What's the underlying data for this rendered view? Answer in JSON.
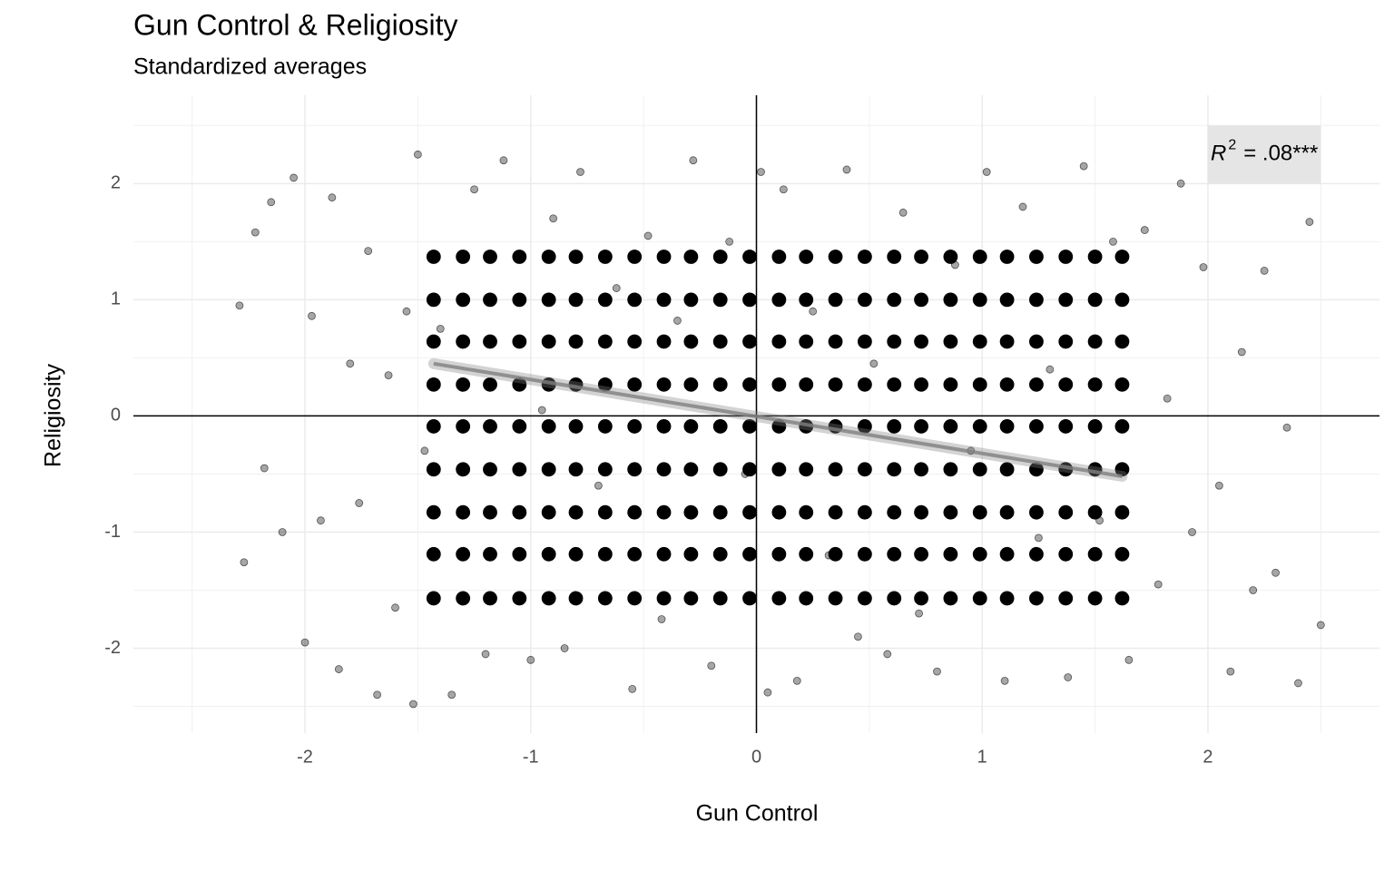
{
  "chart_data": {
    "type": "scatter",
    "title": "Gun Control & Religiosity",
    "subtitle": "Standardized averages",
    "x_label": "Gun Control",
    "y_label": "Religiosity",
    "xlim": [
      -2.76,
      2.76
    ],
    "ylim": [
      -2.73,
      2.76
    ],
    "xticks": [
      -2,
      -1,
      0,
      1,
      2
    ],
    "yticks": [
      -2,
      -1,
      0,
      1,
      2
    ],
    "xminor": [
      -2.5,
      -1.5,
      -0.5,
      0.5,
      1.5,
      2.5
    ],
    "yminor": [
      -2.5,
      -1.5,
      -0.5,
      0.5,
      1.5,
      2.5
    ],
    "grid": true,
    "hline": 0,
    "vline": 0,
    "series": [
      {
        "color": "#000000",
        "opacity": 0.35,
        "x": [
          -2.29,
          -2.27,
          -2.22,
          -2.18,
          -2.15,
          -2.1,
          -2.05,
          -2.0,
          -1.97,
          -1.93,
          -1.88,
          -1.85,
          -1.8,
          -1.76,
          -1.72,
          -1.68,
          -1.63,
          -1.6,
          -1.55,
          -1.52,
          -1.5,
          -1.47,
          -1.4,
          -1.35,
          -1.25,
          -1.2,
          -1.12,
          -1.0,
          -0.95,
          -0.9,
          -0.85,
          -0.78,
          -0.7,
          -0.62,
          -0.55,
          -0.48,
          -0.42,
          -0.35,
          -0.28,
          -0.2,
          -0.12,
          -0.05,
          0.02,
          0.05,
          0.12,
          0.18,
          0.25,
          0.32,
          0.4,
          0.45,
          0.52,
          0.58,
          0.65,
          0.72,
          0.8,
          0.88,
          0.95,
          1.02,
          1.1,
          1.18,
          1.25,
          1.3,
          1.38,
          1.45,
          1.52,
          1.58,
          1.65,
          1.72,
          1.78,
          1.82,
          1.88,
          1.93,
          1.98,
          2.05,
          2.1,
          2.15,
          2.2,
          2.25,
          2.3,
          2.35,
          2.4,
          2.45,
          2.5
        ],
        "y": [
          0.95,
          -1.26,
          1.58,
          -0.45,
          1.84,
          -1.0,
          2.05,
          -1.95,
          0.86,
          -0.9,
          1.88,
          -2.18,
          0.45,
          -0.75,
          1.42,
          -2.4,
          0.35,
          -1.65,
          0.9,
          -2.48,
          2.25,
          -0.3,
          0.75,
          -2.4,
          1.95,
          -2.05,
          2.2,
          -2.1,
          0.05,
          1.7,
          -2.0,
          2.1,
          -0.6,
          1.1,
          -2.35,
          1.55,
          -1.75,
          0.82,
          2.2,
          -2.15,
          1.5,
          -0.5,
          2.1,
          -2.38,
          1.95,
          -2.28,
          0.9,
          -1.2,
          2.12,
          -1.9,
          0.45,
          -2.05,
          1.75,
          -1.7,
          -2.2,
          1.3,
          -0.3,
          2.1,
          -2.28,
          1.8,
          -1.05,
          0.4,
          -2.25,
          2.15,
          -0.9,
          1.5,
          -2.1,
          1.6,
          -1.45,
          0.15,
          2.0,
          -1.0,
          1.28,
          -0.6,
          -2.2,
          0.55,
          -1.5,
          1.25,
          -1.35,
          -0.1,
          -2.3,
          1.67,
          -1.8
        ]
      },
      {
        "color": "#000000",
        "opacity": 1,
        "x": [
          -1.43,
          -1.3,
          -1.18,
          -1.05,
          -0.92,
          -0.8,
          -0.67,
          -0.54,
          -0.41,
          -0.29,
          -0.16,
          -0.03,
          0.1,
          0.22,
          0.35,
          0.48,
          0.61,
          0.73,
          0.86,
          0.99,
          1.11,
          1.24,
          1.37,
          1.5,
          1.62,
          -1.43,
          -1.3,
          -1.18,
          -1.05,
          -0.92,
          -0.8,
          -0.67,
          -0.54,
          -0.41,
          -0.29,
          -0.16,
          -0.03,
          0.1,
          0.22,
          0.35,
          0.48,
          0.61,
          0.73,
          0.86,
          0.99,
          1.11,
          1.24,
          1.37,
          1.5,
          1.62,
          -1.43,
          -1.3,
          -1.18,
          -1.05,
          -0.92,
          -0.8,
          -0.67,
          -0.54,
          -0.41,
          -0.29,
          -0.16,
          -0.03,
          0.1,
          0.22,
          0.35,
          0.48,
          0.61,
          0.73,
          0.86,
          0.99,
          1.11,
          1.24,
          1.37,
          1.5,
          1.62,
          -1.43,
          -1.3,
          -1.18,
          -1.05,
          -0.92,
          -0.8,
          -0.67,
          -0.54,
          -0.41,
          -0.29,
          -0.16,
          -0.03,
          0.1,
          0.22,
          0.35,
          0.48,
          0.61,
          0.73,
          0.86,
          0.99,
          1.11,
          1.24,
          1.37,
          1.5,
          1.62,
          -1.43,
          -1.3,
          -1.18,
          -1.05,
          -0.92,
          -0.8,
          -0.67,
          -0.54,
          -0.41,
          -0.29,
          -0.16,
          -0.03,
          0.1,
          0.22,
          0.35,
          0.48,
          0.61,
          0.73,
          0.86,
          0.99,
          1.11,
          1.24,
          1.37,
          1.5,
          1.62,
          -1.43,
          -1.3,
          -1.18,
          -1.05,
          -0.92,
          -0.8,
          -0.67,
          -0.54,
          -0.41,
          -0.29,
          -0.16,
          -0.03,
          0.1,
          0.22,
          0.35,
          0.48,
          0.61,
          0.73,
          0.86,
          0.99,
          1.11,
          1.24,
          1.37,
          1.5,
          1.62,
          -1.43,
          -1.3,
          -1.18,
          -1.05,
          -0.92,
          -0.8,
          -0.67,
          -0.54,
          -0.41,
          -0.29,
          -0.16,
          -0.03,
          0.1,
          0.22,
          0.35,
          0.48,
          0.61,
          0.73,
          0.86,
          0.99,
          1.11,
          1.24,
          1.37,
          1.5,
          1.62,
          -1.43,
          -1.3,
          -1.18,
          -1.05,
          -0.92,
          -0.8,
          -0.67,
          -0.54,
          -0.41,
          -0.29,
          -0.16,
          -0.03,
          0.1,
          0.22,
          0.35,
          0.48,
          0.61,
          0.73,
          0.86,
          0.99,
          1.11,
          1.24,
          1.37,
          1.5,
          1.62,
          -1.43,
          -1.3,
          -1.18,
          -1.05,
          -0.92,
          -0.8,
          -0.67,
          -0.54,
          -0.41,
          -0.29,
          -0.16,
          -0.03,
          0.1,
          0.22,
          0.35,
          0.48,
          0.61,
          0.73,
          0.86,
          0.99,
          1.11,
          1.24,
          1.37,
          1.5,
          1.62
        ],
        "y": [
          1.37,
          1.37,
          1.37,
          1.37,
          1.37,
          1.37,
          1.37,
          1.37,
          1.37,
          1.37,
          1.37,
          1.37,
          1.37,
          1.37,
          1.37,
          1.37,
          1.37,
          1.37,
          1.37,
          1.37,
          1.37,
          1.37,
          1.37,
          1.37,
          1.37,
          1.0,
          1.0,
          1.0,
          1.0,
          1.0,
          1.0,
          1.0,
          1.0,
          1.0,
          1.0,
          1.0,
          1.0,
          1.0,
          1.0,
          1.0,
          1.0,
          1.0,
          1.0,
          1.0,
          1.0,
          1.0,
          1.0,
          1.0,
          1.0,
          1.0,
          0.64,
          0.64,
          0.64,
          0.64,
          0.64,
          0.64,
          0.64,
          0.64,
          0.64,
          0.64,
          0.64,
          0.64,
          0.64,
          0.64,
          0.64,
          0.64,
          0.64,
          0.64,
          0.64,
          0.64,
          0.64,
          0.64,
          0.64,
          0.64,
          0.64,
          0.27,
          0.27,
          0.27,
          0.27,
          0.27,
          0.27,
          0.27,
          0.27,
          0.27,
          0.27,
          0.27,
          0.27,
          0.27,
          0.27,
          0.27,
          0.27,
          0.27,
          0.27,
          0.27,
          0.27,
          0.27,
          0.27,
          0.27,
          0.27,
          0.27,
          -0.09,
          -0.09,
          -0.09,
          -0.09,
          -0.09,
          -0.09,
          -0.09,
          -0.09,
          -0.09,
          -0.09,
          -0.09,
          -0.09,
          -0.09,
          -0.09,
          -0.09,
          -0.09,
          -0.09,
          -0.09,
          -0.09,
          -0.09,
          -0.09,
          -0.09,
          -0.09,
          -0.09,
          -0.09,
          -0.46,
          -0.46,
          -0.46,
          -0.46,
          -0.46,
          -0.46,
          -0.46,
          -0.46,
          -0.46,
          -0.46,
          -0.46,
          -0.46,
          -0.46,
          -0.46,
          -0.46,
          -0.46,
          -0.46,
          -0.46,
          -0.46,
          -0.46,
          -0.46,
          -0.46,
          -0.46,
          -0.46,
          -0.46,
          -0.83,
          -0.83,
          -0.83,
          -0.83,
          -0.83,
          -0.83,
          -0.83,
          -0.83,
          -0.83,
          -0.83,
          -0.83,
          -0.83,
          -0.83,
          -0.83,
          -0.83,
          -0.83,
          -0.83,
          -0.83,
          -0.83,
          -0.83,
          -0.83,
          -0.83,
          -0.83,
          -0.83,
          -0.83,
          -1.19,
          -1.19,
          -1.19,
          -1.19,
          -1.19,
          -1.19,
          -1.19,
          -1.19,
          -1.19,
          -1.19,
          -1.19,
          -1.19,
          -1.19,
          -1.19,
          -1.19,
          -1.19,
          -1.19,
          -1.19,
          -1.19,
          -1.19,
          -1.19,
          -1.19,
          -1.19,
          -1.19,
          -1.19,
          -1.57,
          -1.57,
          -1.57,
          -1.57,
          -1.57,
          -1.57,
          -1.57,
          -1.57,
          -1.57,
          -1.57,
          -1.57,
          -1.57,
          -1.57,
          -1.57,
          -1.57,
          -1.57,
          -1.57,
          -1.57,
          -1.57,
          -1.57,
          -1.57,
          -1.57,
          -1.57,
          -1.57,
          -1.57
        ]
      }
    ],
    "trend": {
      "color": "#808080",
      "x": [
        -1.43,
        1.62
      ],
      "y": [
        0.45,
        -0.52
      ]
    },
    "annotation": {
      "symbol": "R",
      "superscript": "2",
      "text": "= .08***",
      "x": 2.25,
      "y": 2.25,
      "box": {
        "xmin": 2,
        "xmax": 2.5,
        "ymin": 2,
        "ymax": 2.5,
        "color": "#e5e5e5"
      }
    }
  }
}
